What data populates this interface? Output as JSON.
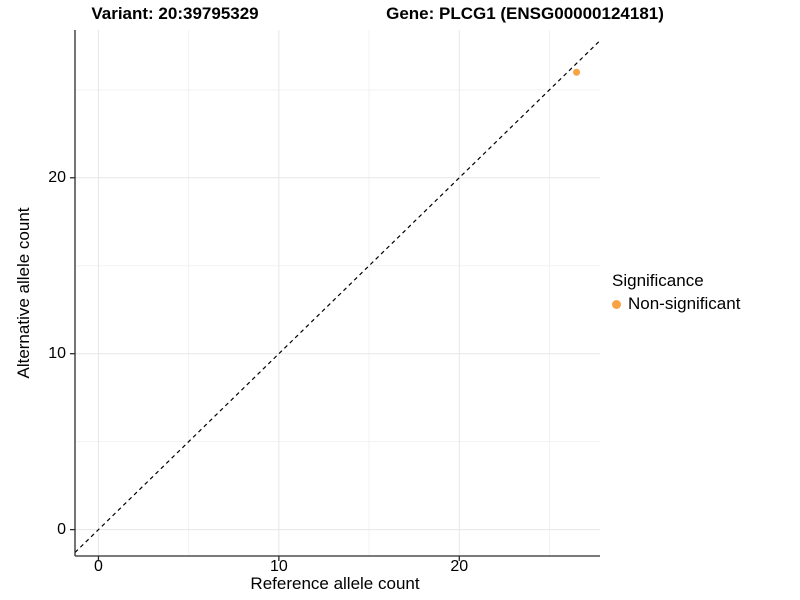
{
  "titles": {
    "left": "Variant: 20:39795329",
    "right": "Gene: PLCG1 (ENSG00000124181)"
  },
  "axes": {
    "x_label": "Reference allele count",
    "y_label": "Alternative allele count"
  },
  "legend": {
    "title": "Significance",
    "items": [
      {
        "label": "Non-significant",
        "color": "#F9A242"
      }
    ]
  },
  "chart_data": {
    "type": "scatter",
    "title": "Variant: 20:39795329  Gene: PLCG1 (ENSG00000124181)",
    "xlabel": "Reference allele count",
    "ylabel": "Alternative allele count",
    "xlim": [
      -1.3,
      27.8
    ],
    "ylim": [
      -1.5,
      28.4
    ],
    "x_ticks": [
      0,
      10,
      20
    ],
    "y_ticks": [
      0,
      10,
      20
    ],
    "x_minor_ticks": [
      5,
      15,
      25
    ],
    "y_minor_ticks": [
      5,
      15,
      25
    ],
    "grid": "major+minor",
    "legend_position": "right",
    "series": [
      {
        "name": "Non-significant",
        "color": "#F9A242",
        "points": [
          {
            "x": 26.5,
            "y": 26
          }
        ]
      }
    ],
    "reference_line": {
      "type": "identity",
      "slope": 1,
      "intercept": 0,
      "style": "dashed",
      "color": "#000000"
    }
  },
  "colors": {
    "background": "#FFFFFF",
    "grid_major": "#E7E7E7",
    "grid_minor": "#F2F2F2",
    "axis": "#2B2B2B",
    "text": "#000000",
    "point": "#F9A242",
    "dashed_line": "#000000"
  }
}
